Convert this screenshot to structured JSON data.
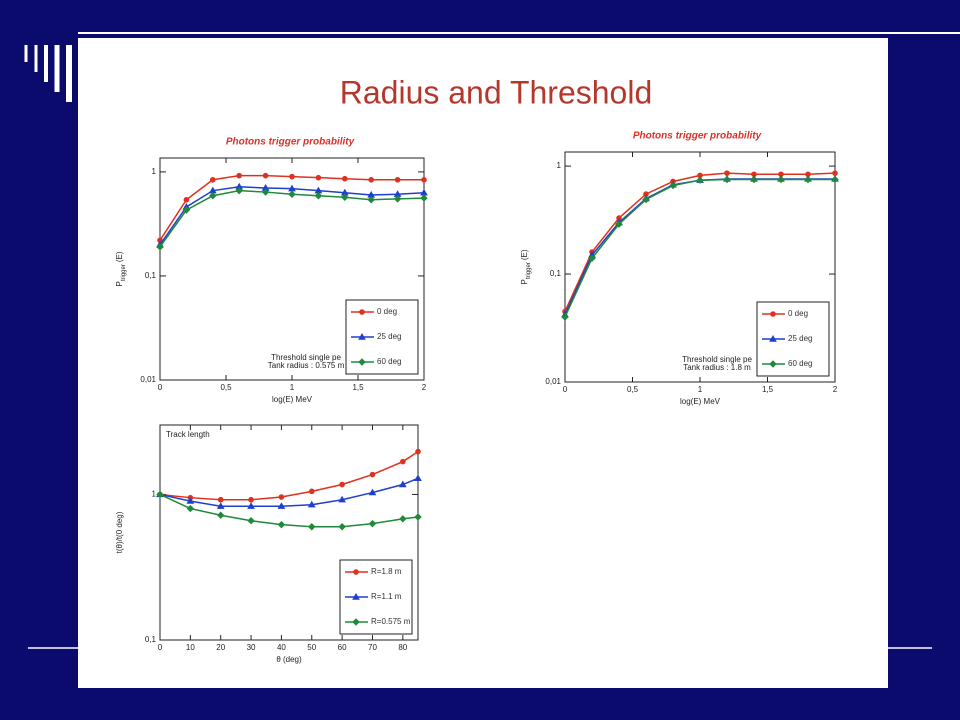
{
  "title": "Radius and Threshold",
  "chart_data": [
    {
      "type": "line",
      "title": "Photons trigger probability",
      "xlabel": "log(E) MeV",
      "ylabel": "P",
      "ylabel_sub": "trigger",
      "ylabel_tail": "(E)",
      "log_y": true,
      "xlim": [
        0,
        2
      ],
      "ylim": [
        0.01,
        1.36
      ],
      "xticks": [
        0,
        {
          "value": 0.5,
          "label": "0,5"
        },
        1,
        {
          "value": 1.5,
          "label": "1,5"
        },
        2
      ],
      "yticks": [
        {
          "value": 0.01,
          "label": "0,01"
        },
        {
          "value": 0.1,
          "label": "0,1"
        },
        1
      ],
      "annotations": [
        "Threshold single pe",
        "Tank radius : 0.575 m"
      ],
      "x": [
        0,
        0.2,
        0.4,
        0.6,
        0.8,
        1.0,
        1.2,
        1.4,
        1.6,
        1.8,
        2.0
      ],
      "series": [
        {
          "name": "0 deg",
          "color": "#e0301e",
          "marker": "circle",
          "values": [
            0.22,
            0.54,
            0.84,
            0.92,
            0.92,
            0.9,
            0.88,
            0.86,
            0.84,
            0.84,
            0.84
          ]
        },
        {
          "name": "25 deg",
          "color": "#1f3fd0",
          "marker": "triangle",
          "values": [
            0.2,
            0.46,
            0.66,
            0.72,
            0.7,
            0.69,
            0.66,
            0.63,
            0.6,
            0.61,
            0.63
          ]
        },
        {
          "name": "60 deg",
          "color": "#1e8a3a",
          "marker": "diamond",
          "values": [
            0.19,
            0.43,
            0.59,
            0.66,
            0.64,
            0.61,
            0.59,
            0.57,
            0.54,
            0.55,
            0.56
          ]
        }
      ]
    },
    {
      "type": "line",
      "title": "Photons trigger probability",
      "xlabel": "log(E) MeV",
      "ylabel": "P",
      "ylabel_sub": "trigger",
      "ylabel_tail": "(E)",
      "log_y": true,
      "xlim": [
        0,
        2
      ],
      "ylim": [
        0.01,
        1.35
      ],
      "xticks": [
        0,
        {
          "value": 0.5,
          "label": "0,5"
        },
        1,
        {
          "value": 1.5,
          "label": "1,5"
        },
        2
      ],
      "yticks": [
        {
          "value": 0.01,
          "label": "0,01"
        },
        {
          "value": 0.1,
          "label": "0,1"
        },
        1
      ],
      "annotations": [
        "Threshold single pe",
        "Tank radius : 1.8 m"
      ],
      "x": [
        0,
        0.2,
        0.4,
        0.6,
        0.8,
        1.0,
        1.2,
        1.4,
        1.6,
        1.8,
        2.0
      ],
      "series": [
        {
          "name": "0 deg",
          "color": "#e0301e",
          "marker": "circle",
          "values": [
            0.045,
            0.16,
            0.33,
            0.55,
            0.72,
            0.82,
            0.86,
            0.84,
            0.84,
            0.84,
            0.86
          ]
        },
        {
          "name": "25 deg",
          "color": "#1f3fd0",
          "marker": "triangle",
          "values": [
            0.042,
            0.15,
            0.3,
            0.5,
            0.67,
            0.74,
            0.76,
            0.76,
            0.76,
            0.76,
            0.76
          ]
        },
        {
          "name": "60 deg",
          "color": "#1e8a3a",
          "marker": "diamond",
          "values": [
            0.04,
            0.14,
            0.29,
            0.49,
            0.66,
            0.74,
            0.75,
            0.75,
            0.75,
            0.75,
            0.75
          ]
        }
      ]
    },
    {
      "type": "line",
      "xlabel": "θ (deg)",
      "ylabel": "t(θ)/t(0 deg)",
      "log_y": true,
      "xlim": [
        0,
        85
      ],
      "ylim": [
        0.1,
        3
      ],
      "xticks": [
        0,
        10,
        20,
        30,
        40,
        50,
        60,
        70,
        80
      ],
      "yticks": [
        {
          "value": 0.1,
          "label": "0,1"
        },
        1
      ],
      "annotations": [
        "Track length"
      ],
      "x": [
        0,
        10,
        20,
        30,
        40,
        50,
        60,
        70,
        80,
        85
      ],
      "series": [
        {
          "name": "R=1.8 m",
          "color": "#e0301e",
          "marker": "circle",
          "values": [
            1,
            0.95,
            0.92,
            0.92,
            0.96,
            1.05,
            1.17,
            1.37,
            1.68,
            1.97
          ]
        },
        {
          "name": "R=1.1 m",
          "color": "#1f3fd0",
          "marker": "triangle",
          "values": [
            1,
            0.9,
            0.83,
            0.83,
            0.83,
            0.85,
            0.92,
            1.03,
            1.17,
            1.29
          ]
        },
        {
          "name": "R=0.575 m",
          "color": "#1e8a3a",
          "marker": "diamond",
          "values": [
            1,
            0.8,
            0.72,
            0.66,
            0.62,
            0.6,
            0.6,
            0.63,
            0.68,
            0.7
          ]
        }
      ]
    }
  ]
}
